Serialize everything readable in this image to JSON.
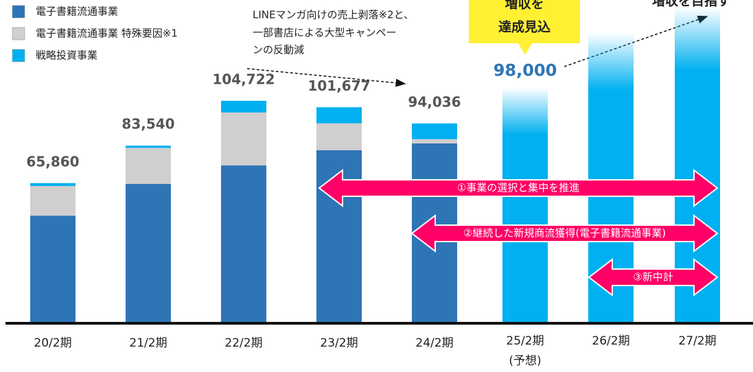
{
  "chart_data": {
    "type": "bar",
    "stacked": true,
    "categories": [
      "20/2期",
      "21/2期",
      "22/2期",
      "23/2期",
      "24/2期",
      "25/2期",
      "26/2期",
      "27/2期"
    ],
    "category_notes": [
      null,
      null,
      null,
      null,
      null,
      "(予想)",
      null,
      null
    ],
    "series": [
      {
        "name": "電子書籍流通事業",
        "color": "#2e75b6",
        "values": [
          50500,
          65500,
          74200,
          81400,
          84600,
          null,
          null,
          null
        ]
      },
      {
        "name": "電子書籍流通事業 特殊要因※1",
        "color": "#d0cece",
        "values": [
          14000,
          17000,
          25000,
          12700,
          2000,
          null,
          null,
          null
        ]
      },
      {
        "name": "戦略投資事業",
        "color": "#00b0f0",
        "values": [
          1360,
          1040,
          5522,
          7577,
          7436,
          null,
          null,
          null
        ]
      }
    ],
    "forecast": {
      "color": "#00b0f0",
      "values": [
        null,
        null,
        null,
        null,
        null,
        98000,
        124000,
        136000
      ]
    },
    "totals": {
      "values": [
        65860,
        83540,
        104722,
        101677,
        94036,
        98000,
        null,
        null
      ],
      "value_labels": [
        "65,860",
        "83,540",
        "104,722",
        "101,677",
        "94,036",
        "98,000",
        null,
        null
      ]
    },
    "ylim": [
      0,
      140000
    ],
    "annotation": [
      "LINEマンガ向けの売上剥落※2と、",
      "一部書店による大型キャンペー",
      "ンの反動減"
    ],
    "callout": [
      "増収を",
      "達成見込"
    ],
    "goal": "増収を目指す",
    "initiatives": [
      "①事業の選択と集中を推進",
      "②継続した新規商流獲得(電子書籍流通事業)",
      "③新中計"
    ]
  }
}
